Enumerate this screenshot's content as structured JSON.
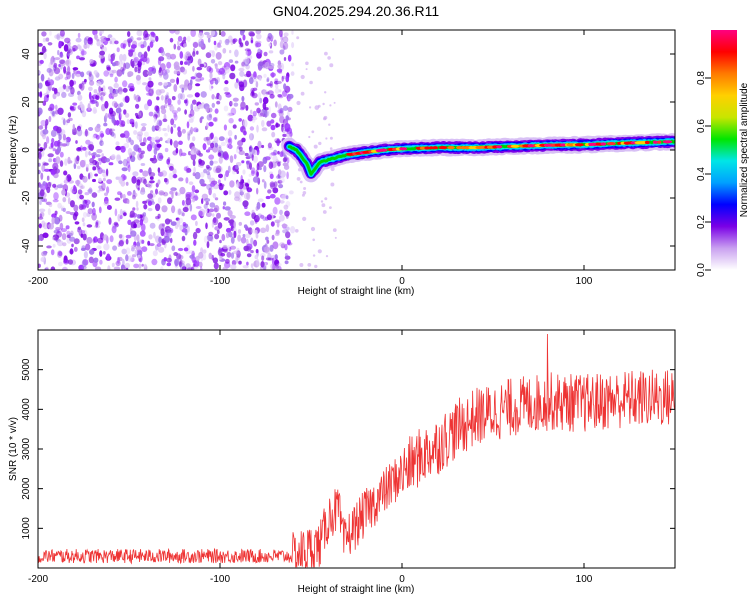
{
  "title": "GN04.2025.294.20.36.R11",
  "chart_data": [
    {
      "type": "heatmap",
      "name": "spectrogram",
      "xlabel": "Height of straight line (km)",
      "ylabel": "Frequency (Hz)",
      "xlim": [
        -200,
        150
      ],
      "ylim": [
        -50,
        50
      ],
      "xticks": [
        -200,
        -100,
        0,
        100
      ],
      "yticks": [
        -40,
        -20,
        0,
        20,
        40
      ],
      "colorbar": {
        "label": "Normalized spectral amplitude",
        "range": [
          0,
          1
        ],
        "ticks": [
          "0.0",
          "0.2",
          "0.4",
          "0.6",
          "0.8"
        ],
        "colors": [
          "#ffffff",
          "#c9a0f0",
          "#7a00e6",
          "#0000ff",
          "#00a0ff",
          "#00e6e6",
          "#00e600",
          "#c8e600",
          "#ffd000",
          "#ff7a00",
          "#ff0000",
          "#ff0080"
        ]
      },
      "noise_region_x": [
        -200,
        -60
      ],
      "line": {
        "x": [
          -62,
          -58,
          -55,
          -52,
          -50,
          -48,
          -45,
          -40,
          -35,
          -30,
          -20,
          -10,
          0,
          20,
          40,
          60,
          80,
          100,
          120,
          150
        ],
        "y": [
          1.5,
          0,
          -3,
          -6,
          -10,
          -8,
          -5,
          -4,
          -3,
          -2,
          -1,
          0,
          0.5,
          1,
          1,
          1.5,
          2,
          2.2,
          2.8,
          3.5
        ]
      }
    },
    {
      "type": "line",
      "name": "snr",
      "xlabel": "Height of straight line (km)",
      "ylabel": "SNR (10 * v/v)",
      "xlim": [
        -200,
        150
      ],
      "ylim": [
        0,
        6000
      ],
      "xticks": [
        -200,
        -100,
        0,
        100
      ],
      "yticks": [
        1000,
        2000,
        3000,
        4000,
        5000
      ],
      "color": "#ee3333",
      "trend": {
        "x": [
          -200,
          -60,
          -45,
          -40,
          -35,
          -32,
          -30,
          -20,
          -10,
          0,
          10,
          20,
          30,
          40,
          60,
          80,
          100,
          120,
          150
        ],
        "y": [
          300,
          300,
          600,
          1300,
          1500,
          600,
          800,
          1400,
          1900,
          2400,
          2800,
          3100,
          3500,
          3800,
          4050,
          4200,
          4150,
          4250,
          4300
        ]
      },
      "noise_amplitude": [
        {
          "from": -200,
          "to": -60,
          "amp": 180
        },
        {
          "from": -60,
          "to": 0,
          "amp": 600
        },
        {
          "from": 0,
          "to": 150,
          "amp": 750
        }
      ],
      "peak_value": 5900
    }
  ]
}
